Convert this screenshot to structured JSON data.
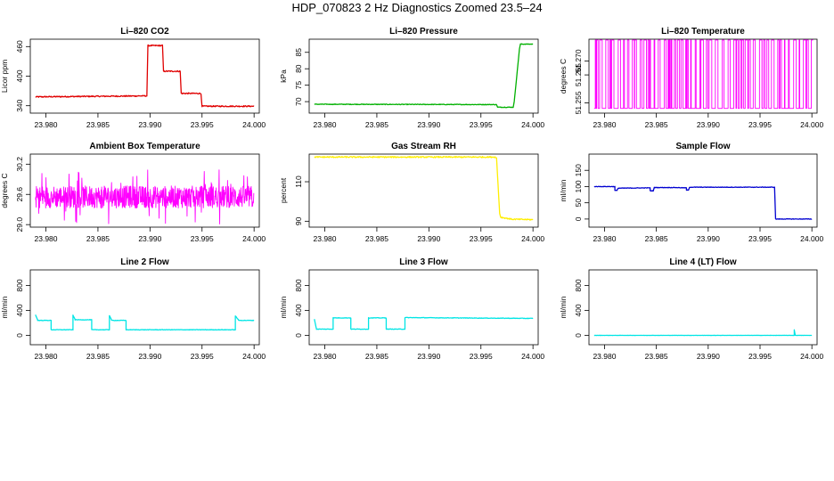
{
  "page": {
    "title": "HDP_070823  2 Hz Diagnostics Zoomed 23.5–24"
  },
  "chart_data": [
    {
      "id": "co2",
      "type": "line",
      "title": "Li–820 CO2",
      "ylabel": "Licor ppm",
      "color": "#e00000",
      "xlim": [
        23.9785,
        24.0005
      ],
      "ylim": [
        325,
        475
      ],
      "xticks": [
        "23.980",
        "23.985",
        "23.990",
        "23.995",
        "24.000"
      ],
      "xtick_values": [
        23.98,
        23.985,
        23.99,
        23.995,
        24.0
      ],
      "yticks": [
        "340",
        "400",
        "460"
      ],
      "ytick_values": [
        340,
        400,
        460
      ],
      "noise": 1.2,
      "segments": [
        [
          23.979,
          23.9897,
          358,
          360
        ],
        [
          23.9898,
          23.9912,
          462,
          462
        ],
        [
          23.9913,
          23.9929,
          410,
          410
        ],
        [
          23.993,
          23.9949,
          365,
          365
        ],
        [
          23.995,
          24.0,
          339,
          339
        ]
      ]
    },
    {
      "id": "pressure",
      "type": "line",
      "title": "Li–820 Pressure",
      "ylabel": "kPa",
      "color": "#00b000",
      "xlim": [
        23.9785,
        24.0005
      ],
      "ylim": [
        66.5,
        89
      ],
      "xticks": [
        "23.980",
        "23.985",
        "23.990",
        "23.995",
        "24.000"
      ],
      "xtick_values": [
        23.98,
        23.985,
        23.99,
        23.995,
        24.0
      ],
      "yticks": [
        "70",
        "75",
        "80",
        "85"
      ],
      "ytick_values": [
        70,
        75,
        80,
        85
      ],
      "noise": 0.1,
      "segments": [
        [
          23.979,
          23.9965,
          69.2,
          69.1
        ],
        [
          23.9966,
          23.9981,
          68.3,
          68.3
        ],
        [
          23.9982,
          23.9987,
          70,
          86
        ],
        [
          23.9988,
          24.0,
          87.5,
          87.5
        ]
      ]
    },
    {
      "id": "licor_temp",
      "type": "line",
      "title": "Li–820 Temperature",
      "ylabel": "degrees C",
      "color": "#ff00ff",
      "xlim": [
        23.9785,
        24.0005
      ],
      "ylim": [
        51.2513,
        51.2778
      ],
      "xticks": [
        "23.980",
        "23.985",
        "23.990",
        "23.995",
        "24.000"
      ],
      "xtick_values": [
        23.98,
        23.985,
        23.99,
        23.995,
        24.0
      ],
      "yticks": [
        "51.255",
        "51.265",
        "51.270"
      ],
      "ytick_values": [
        51.255,
        51.265,
        51.27
      ],
      "pattern": "binary",
      "levels": [
        51.253,
        51.2775
      ]
    },
    {
      "id": "ambient_temp",
      "type": "line",
      "title": "Ambient Box Temperature",
      "ylabel": "degrees C",
      "color": "#ff00ff",
      "xlim": [
        23.9785,
        24.0005
      ],
      "ylim": [
        28.95,
        30.4
      ],
      "xticks": [
        "23.980",
        "23.985",
        "23.990",
        "23.995",
        "24.000"
      ],
      "xtick_values": [
        23.98,
        23.985,
        23.99,
        23.995,
        24.0
      ],
      "yticks": [
        "29.0",
        "29.6",
        "30.2"
      ],
      "ytick_values": [
        29.0,
        29.6,
        30.2
      ],
      "pattern": "noise",
      "center": 29.55,
      "amplitude": 0.22,
      "extreme": 0.55
    },
    {
      "id": "rh",
      "type": "line",
      "title": "Gas Stream RH",
      "ylabel": "percent",
      "color": "#ffee00",
      "xlim": [
        23.9785,
        24.0005
      ],
      "ylim": [
        87,
        124
      ],
      "xticks": [
        "23.980",
        "23.985",
        "23.990",
        "23.995",
        "24.000"
      ],
      "xtick_values": [
        23.98,
        23.985,
        23.99,
        23.995,
        24.0
      ],
      "yticks": [
        "90",
        "110"
      ],
      "ytick_values": [
        90,
        110
      ],
      "noise": 0.3,
      "segments": [
        [
          23.979,
          23.9964,
          122.5,
          122.5
        ],
        [
          23.9965,
          23.9968,
          122,
          94
        ],
        [
          23.9969,
          23.998,
          92,
          91
        ],
        [
          23.9981,
          24.0,
          91,
          90.8
        ]
      ]
    },
    {
      "id": "sample_flow",
      "type": "line",
      "title": "Sample Flow",
      "ylabel": "ml/min",
      "color": "#0000d0",
      "xlim": [
        23.9785,
        24.0005
      ],
      "ylim": [
        -25,
        200
      ],
      "xticks": [
        "23.980",
        "23.985",
        "23.990",
        "23.995",
        "24.000"
      ],
      "xtick_values": [
        23.98,
        23.985,
        23.99,
        23.995,
        24.0
      ],
      "yticks": [
        "0",
        "50",
        "100",
        "150"
      ],
      "ytick_values": [
        0,
        50,
        100,
        150
      ],
      "noise": 0.8,
      "segments": [
        [
          23.979,
          23.981,
          100,
          100
        ],
        [
          23.981,
          23.9812,
          88,
          88
        ],
        [
          23.9813,
          23.9844,
          95,
          96
        ],
        [
          23.9844,
          23.9847,
          87,
          87
        ],
        [
          23.9848,
          23.9867,
          97,
          97
        ],
        [
          23.9868,
          23.9879,
          97,
          96
        ],
        [
          23.9879,
          23.9881,
          89,
          89
        ],
        [
          23.9882,
          23.9964,
          98,
          98
        ],
        [
          23.9965,
          24.0,
          0,
          0
        ]
      ]
    },
    {
      "id": "line2",
      "type": "line",
      "title": "Line 2 Flow",
      "ylabel": "ml/min",
      "color": "#00e5e5",
      "xlim": [
        23.9785,
        24.0005
      ],
      "ylim": [
        -150,
        1050
      ],
      "xticks": [
        "23.980",
        "23.985",
        "23.990",
        "23.995",
        "24.000"
      ],
      "xtick_values": [
        23.98,
        23.985,
        23.99,
        23.995,
        24.0
      ],
      "yticks": [
        "0",
        "400",
        "800"
      ],
      "ytick_values": [
        0,
        400,
        800
      ],
      "noise": 4,
      "segments": [
        [
          23.979,
          23.9792,
          330,
          250
        ],
        [
          23.9792,
          23.9805,
          240,
          240
        ],
        [
          23.9805,
          23.9826,
          90,
          90
        ],
        [
          23.9826,
          23.9828,
          320,
          260
        ],
        [
          23.9828,
          23.9844,
          250,
          250
        ],
        [
          23.9844,
          23.9861,
          90,
          90
        ],
        [
          23.9861,
          23.9863,
          320,
          250
        ],
        [
          23.9863,
          23.9877,
          240,
          240
        ],
        [
          23.9877,
          23.9982,
          90,
          90
        ],
        [
          23.9982,
          23.9985,
          310,
          250
        ],
        [
          23.9985,
          24.0,
          240,
          240
        ]
      ]
    },
    {
      "id": "line3",
      "type": "line",
      "title": "Line 3 Flow",
      "ylabel": "ml/min",
      "color": "#00e5e5",
      "xlim": [
        23.9785,
        24.0005
      ],
      "ylim": [
        -150,
        1050
      ],
      "xticks": [
        "23.980",
        "23.985",
        "23.990",
        "23.995",
        "24.000"
      ],
      "xtick_values": [
        23.98,
        23.985,
        23.99,
        23.995,
        24.0
      ],
      "yticks": [
        "0",
        "400",
        "800"
      ],
      "ytick_values": [
        0,
        400,
        800
      ],
      "noise": 4,
      "segments": [
        [
          23.979,
          23.9792,
          260,
          100
        ],
        [
          23.9792,
          23.9808,
          100,
          100
        ],
        [
          23.9808,
          23.9825,
          280,
          280
        ],
        [
          23.9825,
          23.9842,
          100,
          100
        ],
        [
          23.9842,
          23.9859,
          280,
          280
        ],
        [
          23.9859,
          23.9877,
          100,
          100
        ],
        [
          23.9877,
          24.0,
          285,
          272
        ]
      ]
    },
    {
      "id": "line4",
      "type": "line",
      "title": "Line 4 (LT) Flow",
      "ylabel": "ml/min",
      "color": "#00e5e5",
      "xlim": [
        23.9785,
        24.0005
      ],
      "ylim": [
        -150,
        1050
      ],
      "xticks": [
        "23.980",
        "23.985",
        "23.990",
        "23.995",
        "24.000"
      ],
      "xtick_values": [
        23.98,
        23.985,
        23.99,
        23.995,
        24.0
      ],
      "yticks": [
        "0",
        "400",
        "800"
      ],
      "ytick_values": [
        0,
        400,
        800
      ],
      "noise": 1,
      "segments": [
        [
          23.979,
          23.9983,
          0,
          0
        ],
        [
          23.9983,
          23.9984,
          90,
          0
        ],
        [
          23.9984,
          24.0,
          0,
          0
        ]
      ]
    }
  ]
}
